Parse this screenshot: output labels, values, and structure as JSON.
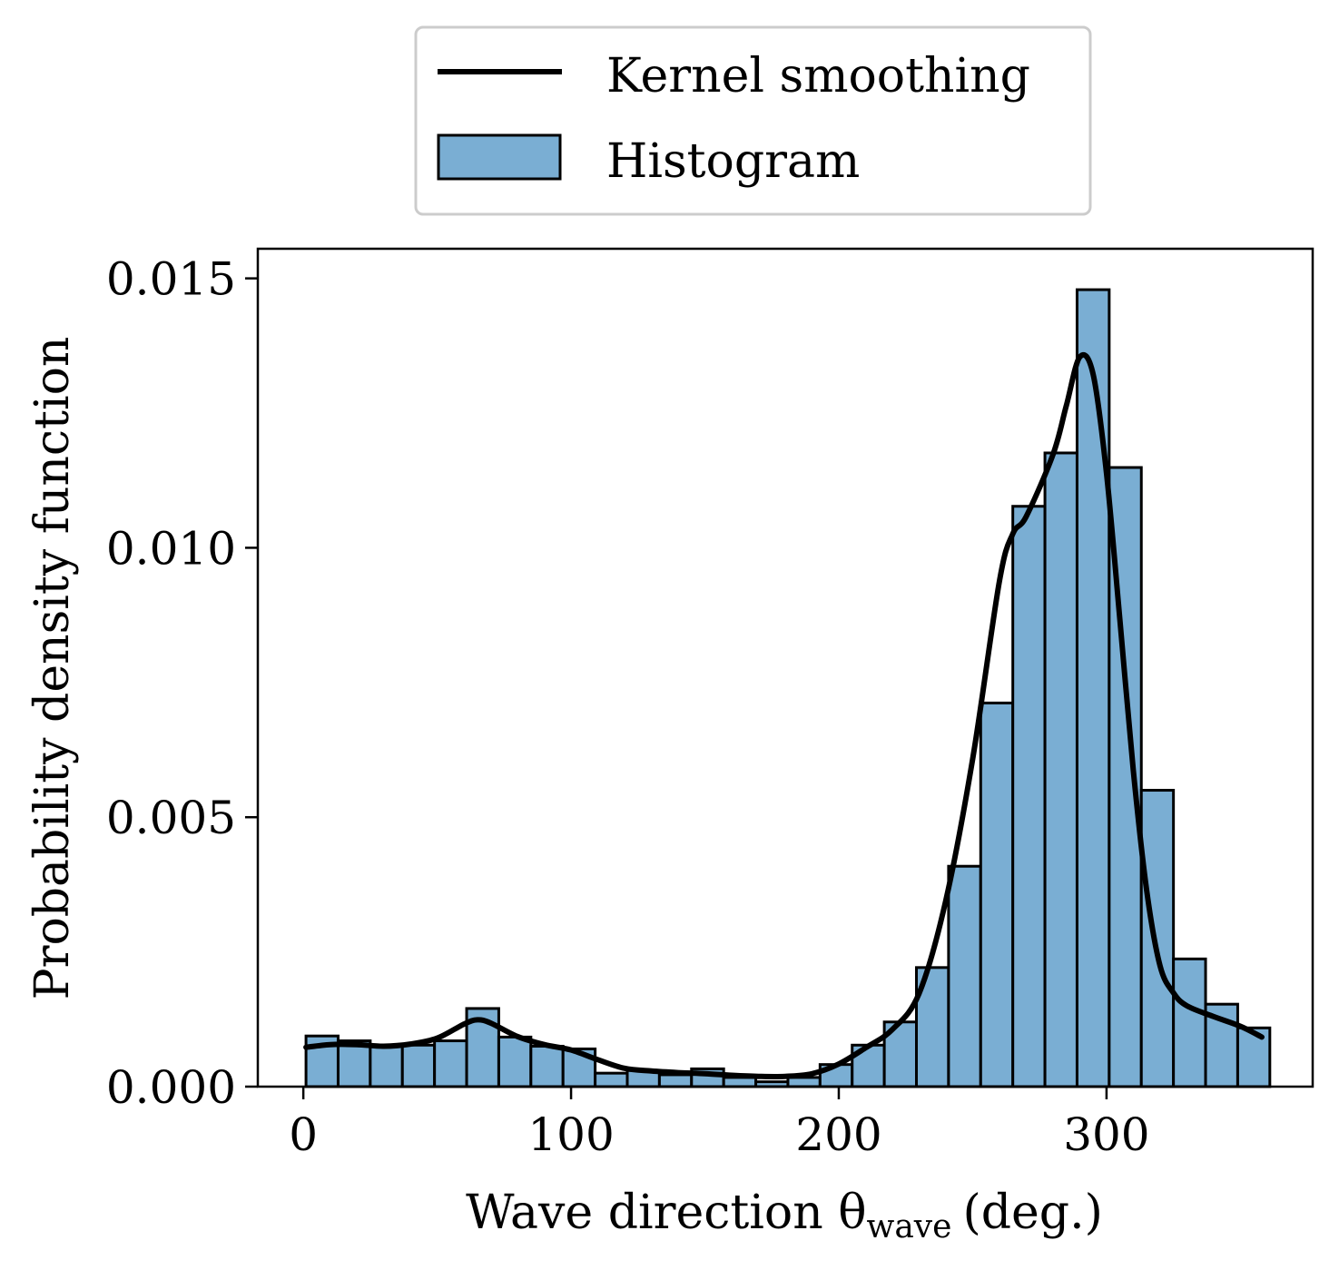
{
  "chart_data": {
    "type": "bar",
    "subtype": "histogram-with-kde",
    "x_bin_edges": [
      1,
      13,
      25,
      37,
      49,
      61,
      73,
      85,
      97,
      109,
      121,
      133,
      145,
      157,
      169,
      181,
      193,
      205,
      217,
      229,
      241,
      253,
      265,
      277,
      289,
      301,
      313,
      325,
      337,
      349,
      361
    ],
    "values": [
      0.00094,
      0.00085,
      0.00076,
      0.00077,
      0.00085,
      0.00145,
      0.00092,
      0.00075,
      0.0007,
      0.00025,
      0.0003,
      0.00022,
      0.00033,
      0.00017,
      9e-05,
      0.00017,
      0.00041,
      0.00077,
      0.0012,
      0.00221,
      0.00409,
      0.00712,
      0.01077,
      0.01176,
      0.01479,
      0.01149,
      0.0055,
      0.00237,
      0.00153,
      0.00109
    ],
    "series": [
      {
        "name": "Kernel smoothing",
        "x": [
          1,
          10,
          20,
          30,
          40,
          50,
          60,
          65,
          70,
          80,
          90,
          100,
          110,
          120,
          130,
          140,
          150,
          160,
          170,
          180,
          190,
          200,
          210,
          220,
          230,
          240,
          250,
          260,
          265,
          270,
          280,
          285,
          290,
          295,
          300,
          305,
          310,
          315,
          320,
          325,
          330,
          340,
          350,
          358
        ],
        "y": [
          0.00073,
          0.00078,
          0.00078,
          0.00075,
          0.00079,
          0.0009,
          0.00116,
          0.00124,
          0.00118,
          0.00093,
          0.00078,
          0.00068,
          0.0005,
          0.00034,
          0.00029,
          0.00026,
          0.00024,
          0.00021,
          0.00019,
          0.00019,
          0.00024,
          0.00042,
          0.00072,
          0.00106,
          0.00173,
          0.00346,
          0.00608,
          0.00938,
          0.01026,
          0.01058,
          0.01173,
          0.01264,
          0.01354,
          0.01322,
          0.01138,
          0.00866,
          0.00587,
          0.00364,
          0.00224,
          0.00174,
          0.0015,
          0.0013,
          0.00112,
          0.00092
        ]
      },
      {
        "name": "Histogram",
        "values_ref": "values"
      }
    ],
    "title": "",
    "xlabel": "Wave direction θ",
    "xlabel_subscript": "wave",
    "xlabel_suffix": "(deg.)",
    "ylabel": "Probability density function",
    "xlim": [
      -17,
      377
    ],
    "ylim": [
      0,
      0.01555
    ],
    "xticks": [
      0,
      100,
      200,
      300
    ],
    "xtick_labels": [
      "0",
      "100",
      "200",
      "300"
    ],
    "yticks": [
      0,
      0.005,
      0.01,
      0.015
    ],
    "ytick_labels": [
      "0.000",
      "0.005",
      "0.010",
      "0.015"
    ],
    "grid": false,
    "legend_position": "top-center, outside above plot",
    "colors": {
      "bar_fill": "#7aaed3",
      "bar_edge": "#000000",
      "kde_line": "#000000",
      "legend_border": "#cccccc"
    }
  },
  "legend": {
    "items": [
      {
        "label": "Kernel smoothing",
        "icon": "line-swatch"
      },
      {
        "label": "Histogram",
        "icon": "bar-swatch"
      }
    ]
  }
}
